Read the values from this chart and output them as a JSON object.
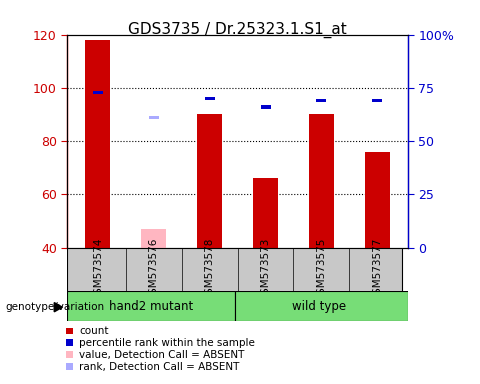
{
  "title": "GDS3735 / Dr.25323.1.S1_at",
  "samples": [
    "GSM573574",
    "GSM573576",
    "GSM573578",
    "GSM573573",
    "GSM573575",
    "GSM573577"
  ],
  "ylim_left": [
    40,
    120
  ],
  "ylim_right": [
    0,
    100
  ],
  "yticks_left": [
    40,
    60,
    80,
    100,
    120
  ],
  "yticks_right": [
    0,
    25,
    50,
    75,
    100
  ],
  "ytick_labels_right": [
    "0",
    "25",
    "50",
    "75",
    "100%"
  ],
  "bar_bottom": 40,
  "count_values": [
    118,
    0,
    90,
    66,
    90,
    76
  ],
  "count_absent": [
    0,
    47,
    0,
    0,
    0,
    0
  ],
  "percentile_values": [
    73,
    0,
    70,
    66,
    69,
    69
  ],
  "percentile_absent": [
    0,
    61,
    0,
    0,
    0,
    0
  ],
  "count_color": "#CC0000",
  "count_absent_color": "#FFB6C1",
  "percentile_color": "#0000CC",
  "percentile_absent_color": "#AAAAFF",
  "bar_width": 0.45,
  "percentile_bar_width": 0.18,
  "left_axis_color": "#CC0000",
  "right_axis_color": "#0000CC",
  "background_label": "#c8c8c8",
  "group_box_color": "#77dd77",
  "grid_color": "#000000",
  "legend_items": [
    {
      "label": "count",
      "color": "#CC0000"
    },
    {
      "label": "percentile rank within the sample",
      "color": "#0000CC"
    },
    {
      "label": "value, Detection Call = ABSENT",
      "color": "#FFB6C1"
    },
    {
      "label": "rank, Detection Call = ABSENT",
      "color": "#AAAAFF"
    }
  ]
}
